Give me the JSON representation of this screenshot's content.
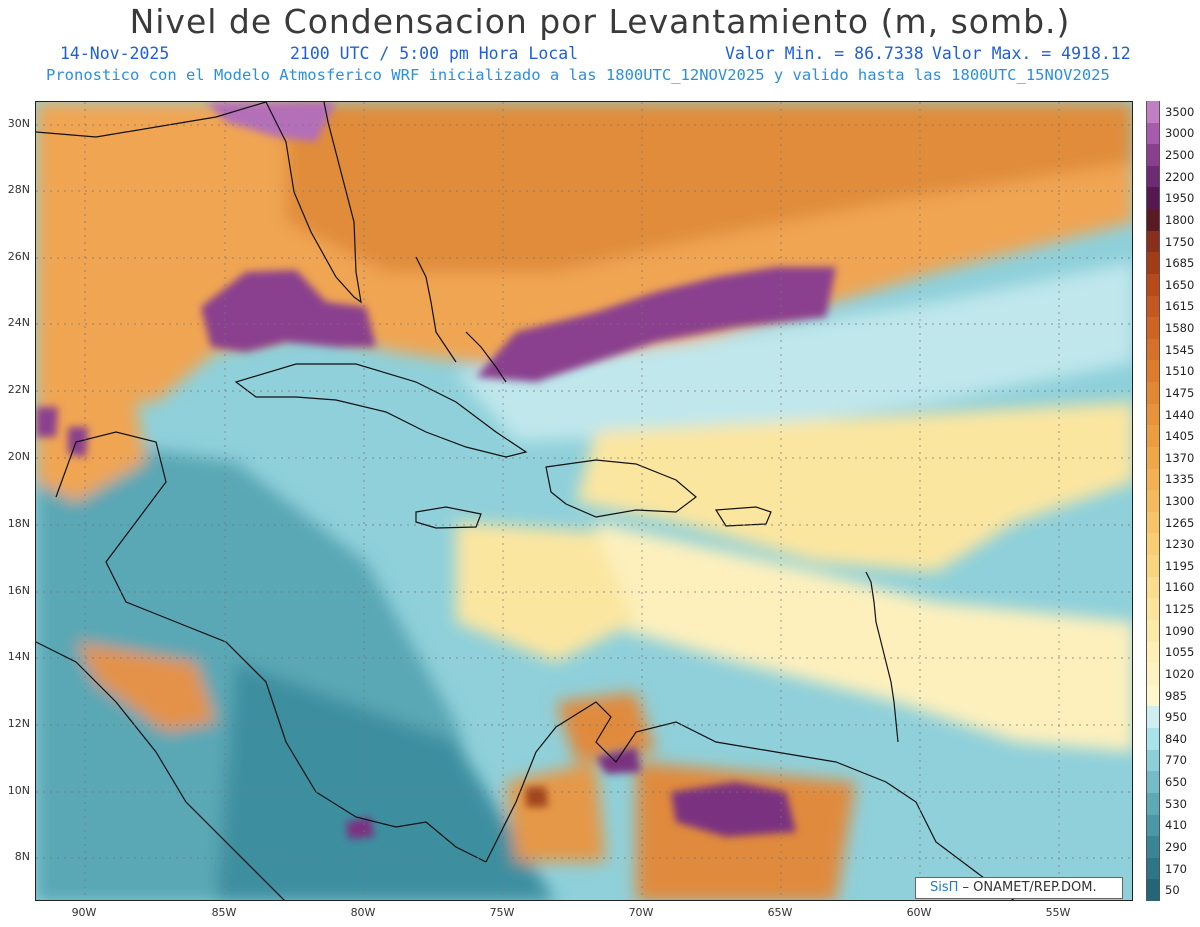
{
  "header": {
    "title": "Nivel de Condensacion por Levantamiento (m, somb.)",
    "date": "14-Nov-2025",
    "time": "2100 UTC / 5:00 pm Hora Local",
    "min_label": "Valor Min. = 86.7338",
    "max_label": "Valor Max. = 4918.12",
    "forecast_line": "Pronostico con el Modelo Atmosferico WRF inicializado a las 1800UTC_12NOV2025 y valido hasta las  1800UTC_15NOV2025"
  },
  "map": {
    "lat_labels": [
      "30N",
      "28N",
      "26N",
      "24N",
      "22N",
      "20N",
      "18N",
      "16N",
      "14N",
      "12N",
      "10N",
      "8N"
    ],
    "lon_labels": [
      "90W",
      "85W",
      "80W",
      "75W",
      "70W",
      "65W",
      "60W",
      "55W"
    ]
  },
  "colorbar": {
    "levels": [
      "3500",
      "3000",
      "2500",
      "2200",
      "1950",
      "1800",
      "1750",
      "1685",
      "1650",
      "1615",
      "1580",
      "1545",
      "1510",
      "1475",
      "1440",
      "1405",
      "1370",
      "1335",
      "1300",
      "1265",
      "1230",
      "1195",
      "1160",
      "1125",
      "1090",
      "1055",
      "1020",
      "985",
      "950",
      "840",
      "770",
      "650",
      "530",
      "410",
      "290",
      "170",
      "50"
    ],
    "colors": [
      "#c27fc4",
      "#a85aae",
      "#8a3f8e",
      "#6e2a72",
      "#55184f",
      "#5a1a22",
      "#8a2f1c",
      "#a23c18",
      "#b84a1a",
      "#c55820",
      "#cf6423",
      "#d77028",
      "#de7c2d",
      "#e38733",
      "#e89239",
      "#ec9d40",
      "#f0a748",
      "#f3b152",
      "#f5ba5c",
      "#f7c467",
      "#f8cd73",
      "#f9d580",
      "#fadd8d",
      "#fbe49b",
      "#fceaa8",
      "#fdefb5",
      "#fdf3c2",
      "#fdf6cc",
      "#cfeef0",
      "#a8e2ea",
      "#8ccfd8",
      "#74bcc7",
      "#5ea9b6",
      "#4a97a5",
      "#3a8595",
      "#2e7587",
      "#246678"
    ]
  },
  "credit": {
    "sis": "SisΠ",
    "org": " – ONAMET/REP.DOM."
  }
}
